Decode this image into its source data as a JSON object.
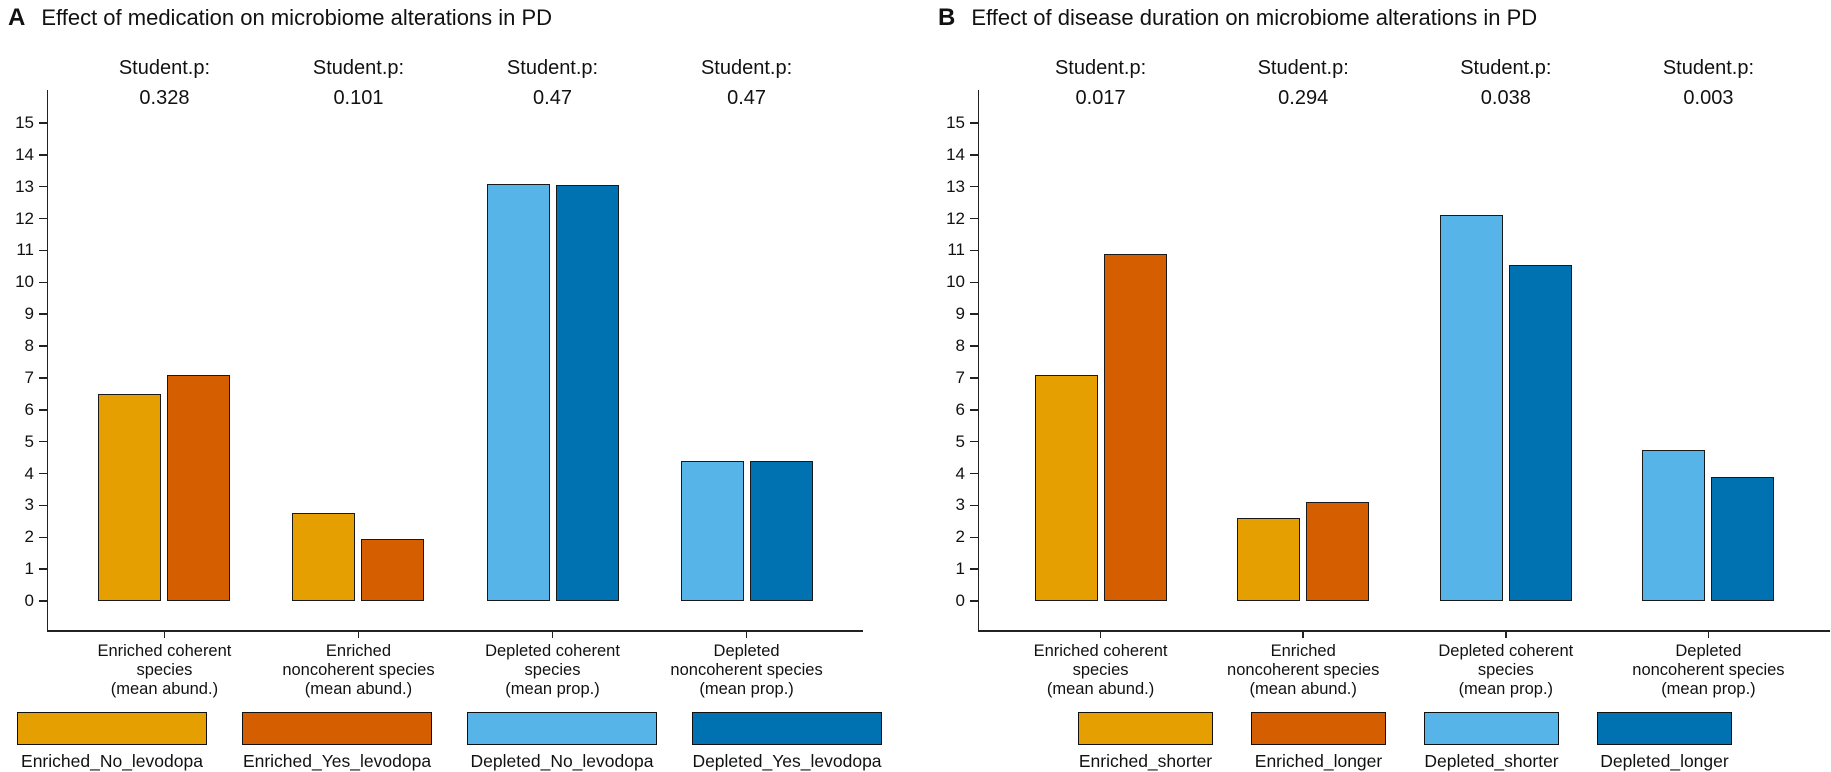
{
  "figure": {
    "background": "#ffffff",
    "text_color": "#111111",
    "axis_color": "#222222",
    "bar_outline_color": "#1a1a1a"
  },
  "chart_data": [
    {
      "type": "bar",
      "panel_label": "A",
      "title": "Effect of medication on microbiome alterations in PD",
      "stat_label": "Student.p:",
      "xlabel": "",
      "ylabel": "",
      "ylim": [
        0,
        15
      ],
      "y_ticks": [
        0,
        1,
        2,
        3,
        4,
        5,
        6,
        7,
        8,
        9,
        10,
        11,
        12,
        13,
        14,
        15
      ],
      "grid": false,
      "legend_position": "bottom",
      "categories": [
        {
          "lines": [
            "Enriched coherent",
            "species",
            "(mean abund.)"
          ]
        },
        {
          "lines": [
            "Enriched",
            "noncoherent species",
            "(mean abund.)"
          ]
        },
        {
          "lines": [
            "Depleted coherent",
            "species",
            "(mean prop.)"
          ]
        },
        {
          "lines": [
            "Depleted",
            "noncoherent species",
            "(mean prop.)"
          ]
        }
      ],
      "p_values": [
        "0.328",
        "0.101",
        "0.47",
        "0.47"
      ],
      "series": [
        {
          "name": "Enriched_No_levodopa",
          "color": "#E69F00",
          "values": [
            6.5,
            2.75,
            null,
            null
          ]
        },
        {
          "name": "Enriched_Yes_levodopa",
          "color": "#D55E00",
          "values": [
            7.1,
            1.95,
            null,
            null
          ]
        },
        {
          "name": "Depleted_No_levodopa",
          "color": "#56B4E9",
          "values": [
            null,
            null,
            13.1,
            4.4
          ]
        },
        {
          "name": "Depleted_Yes_levodopa",
          "color": "#0072B2",
          "values": [
            null,
            null,
            13.05,
            4.4
          ]
        }
      ],
      "groups": [
        {
          "bars": [
            {
              "series": "Enriched_No_levodopa",
              "color": "#E69F00",
              "value": 6.5
            },
            {
              "series": "Enriched_Yes_levodopa",
              "color": "#D55E00",
              "value": 7.1
            }
          ]
        },
        {
          "bars": [
            {
              "series": "Enriched_No_levodopa",
              "color": "#E69F00",
              "value": 2.75
            },
            {
              "series": "Enriched_Yes_levodopa",
              "color": "#D55E00",
              "value": 1.95
            }
          ]
        },
        {
          "bars": [
            {
              "series": "Depleted_No_levodopa",
              "color": "#56B4E9",
              "value": 13.1
            },
            {
              "series": "Depleted_Yes_levodopa",
              "color": "#0072B2",
              "value": 13.05
            }
          ]
        },
        {
          "bars": [
            {
              "series": "Depleted_No_levodopa",
              "color": "#56B4E9",
              "value": 4.4
            },
            {
              "series": "Depleted_Yes_levodopa",
              "color": "#0072B2",
              "value": 4.4
            }
          ]
        }
      ],
      "legend": [
        {
          "label": "Enriched_No_levodopa",
          "color": "#E69F00"
        },
        {
          "label": "Enriched_Yes_levodopa",
          "color": "#D55E00"
        },
        {
          "label": "Depleted_No_levodopa",
          "color": "#56B4E9"
        },
        {
          "label": "Depleted_Yes_levodopa",
          "color": "#0072B2"
        }
      ]
    },
    {
      "type": "bar",
      "panel_label": "B",
      "title": "Effect of disease duration on microbiome alterations in PD",
      "stat_label": "Student.p:",
      "xlabel": "",
      "ylabel": "",
      "ylim": [
        0,
        15
      ],
      "y_ticks": [
        0,
        1,
        2,
        3,
        4,
        5,
        6,
        7,
        8,
        9,
        10,
        11,
        12,
        13,
        14,
        15
      ],
      "grid": false,
      "legend_position": "bottom",
      "categories": [
        {
          "lines": [
            "Enriched coherent",
            "species",
            "(mean abund.)"
          ]
        },
        {
          "lines": [
            "Enriched",
            "noncoherent species",
            "(mean abund.)"
          ]
        },
        {
          "lines": [
            "Depleted coherent",
            "species",
            "(mean prop.)"
          ]
        },
        {
          "lines": [
            "Depleted",
            "noncoherent species",
            "(mean prop.)"
          ]
        }
      ],
      "p_values": [
        "0.017",
        "0.294",
        "0.038",
        "0.003"
      ],
      "series": [
        {
          "name": "Enriched_shorter",
          "color": "#E69F00",
          "values": [
            7.1,
            2.6,
            null,
            null
          ]
        },
        {
          "name": "Enriched_longer",
          "color": "#D55E00",
          "values": [
            10.9,
            3.1,
            null,
            null
          ]
        },
        {
          "name": "Depleted_shorter",
          "color": "#56B4E9",
          "values": [
            null,
            null,
            12.1,
            4.75
          ]
        },
        {
          "name": "Depleted_longer",
          "color": "#0072B2",
          "values": [
            null,
            null,
            10.55,
            3.9
          ]
        }
      ],
      "groups": [
        {
          "bars": [
            {
              "series": "Enriched_shorter",
              "color": "#E69F00",
              "value": 7.1
            },
            {
              "series": "Enriched_longer",
              "color": "#D55E00",
              "value": 10.9
            }
          ]
        },
        {
          "bars": [
            {
              "series": "Enriched_shorter",
              "color": "#E69F00",
              "value": 2.6
            },
            {
              "series": "Enriched_longer",
              "color": "#D55E00",
              "value": 3.1
            }
          ]
        },
        {
          "bars": [
            {
              "series": "Depleted_shorter",
              "color": "#56B4E9",
              "value": 12.1
            },
            {
              "series": "Depleted_longer",
              "color": "#0072B2",
              "value": 10.55
            }
          ]
        },
        {
          "bars": [
            {
              "series": "Depleted_shorter",
              "color": "#56B4E9",
              "value": 4.75
            },
            {
              "series": "Depleted_longer",
              "color": "#0072B2",
              "value": 3.9
            }
          ]
        }
      ],
      "legend": [
        {
          "label": "Enriched_shorter",
          "color": "#E69F00"
        },
        {
          "label": "Enriched_longer",
          "color": "#D55E00"
        },
        {
          "label": "Depleted_shorter",
          "color": "#56B4E9"
        },
        {
          "label": "Depleted_longer",
          "color": "#0072B2"
        }
      ]
    }
  ]
}
